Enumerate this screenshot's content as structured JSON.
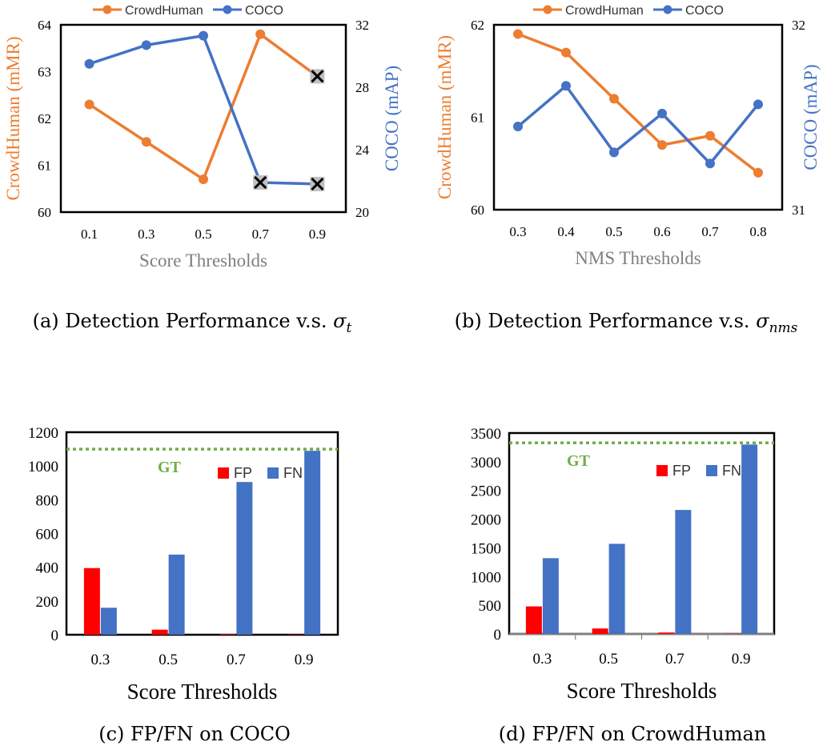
{
  "colors": {
    "crowdhuman": "#ed7d31",
    "coco": "#4472c4",
    "fp": "#ff0000",
    "fn": "#4472c4",
    "gt": "#70ad47",
    "marker_box": "#bfbfbf"
  },
  "chart_data": [
    {
      "type": "line",
      "caption": "(a) Detection Performance v.s.",
      "caption_symbol": "σ",
      "caption_sub": "t",
      "x": [
        "0.1",
        "0.3",
        "0.5",
        "0.7",
        "0.9"
      ],
      "xlabel": "Score Thresholds",
      "ylabel_left": "CrowdHuman (mMR)",
      "ylabel_right": "COCO (mAP)",
      "ylim_left": [
        60,
        64
      ],
      "ylim_right": [
        20,
        32
      ],
      "yticks_left": [
        "60",
        "61",
        "62",
        "63",
        "64"
      ],
      "yticks_right": [
        "20",
        "24",
        "28",
        "32"
      ],
      "legend_position": "top",
      "series": [
        {
          "name": "CrowdHuman",
          "axis": "left",
          "values": [
            62.3,
            61.5,
            60.7,
            63.8,
            62.9
          ],
          "crossed": [
            false,
            false,
            false,
            false,
            true
          ]
        },
        {
          "name": "COCO",
          "axis": "right",
          "values": [
            29.5,
            30.7,
            31.3,
            21.9,
            21.8
          ],
          "crossed": [
            false,
            false,
            false,
            true,
            true
          ]
        }
      ]
    },
    {
      "type": "line",
      "caption": "(b) Detection Performance v.s.",
      "caption_symbol": "σ",
      "caption_sub": "nms",
      "x": [
        "0.3",
        "0.4",
        "0.5",
        "0.6",
        "0.7",
        "0.8"
      ],
      "xlabel": "NMS Thresholds",
      "ylabel_left": "CrowdHuman (mMR)",
      "ylabel_right": "COCO (mAP)",
      "ylim_left": [
        60,
        62
      ],
      "ylim_right": [
        31,
        32
      ],
      "yticks_left": [
        "60",
        "61",
        "62"
      ],
      "yticks_right": [
        "31",
        "32"
      ],
      "legend_position": "top",
      "series": [
        {
          "name": "CrowdHuman",
          "axis": "left",
          "values": [
            61.9,
            61.7,
            61.2,
            60.7,
            60.8,
            60.4
          ],
          "crossed": [
            false,
            false,
            false,
            false,
            false,
            false
          ]
        },
        {
          "name": "COCO",
          "axis": "right",
          "values": [
            31.45,
            31.67,
            31.31,
            31.52,
            31.25,
            31.57
          ],
          "crossed": [
            false,
            false,
            false,
            false,
            false,
            false
          ]
        }
      ]
    },
    {
      "type": "bar",
      "caption": "(c) FP/FN on COCO",
      "categories": [
        "0.3",
        "0.5",
        "0.7",
        "0.9"
      ],
      "xlabel": "Score Thresholds",
      "ylim": [
        0,
        1200
      ],
      "yticks": [
        "0",
        "200",
        "400",
        "600",
        "800",
        "1000",
        "1200"
      ],
      "gt": {
        "label": "GT",
        "value": 1100
      },
      "legend_position": "top-right",
      "series": [
        {
          "name": "FP",
          "values": [
            395,
            30,
            4,
            2
          ]
        },
        {
          "name": "FN",
          "values": [
            160,
            475,
            905,
            1090
          ]
        }
      ]
    },
    {
      "type": "bar",
      "caption": "(d) FP/FN on CrowdHuman",
      "categories": [
        "0.3",
        "0.5",
        "0.7",
        "0.9"
      ],
      "xlabel": "Score Thresholds",
      "ylim": [
        0,
        3500
      ],
      "yticks": [
        "0",
        "500",
        "1000",
        "1500",
        "2000",
        "2500",
        "3000",
        "3500"
      ],
      "gt": {
        "label": "GT",
        "value": 3330
      },
      "legend_position": "top-right",
      "series": [
        {
          "name": "FP",
          "values": [
            480,
            95,
            25,
            5
          ]
        },
        {
          "name": "FN",
          "values": [
            1320,
            1570,
            2160,
            3300
          ]
        }
      ]
    }
  ]
}
